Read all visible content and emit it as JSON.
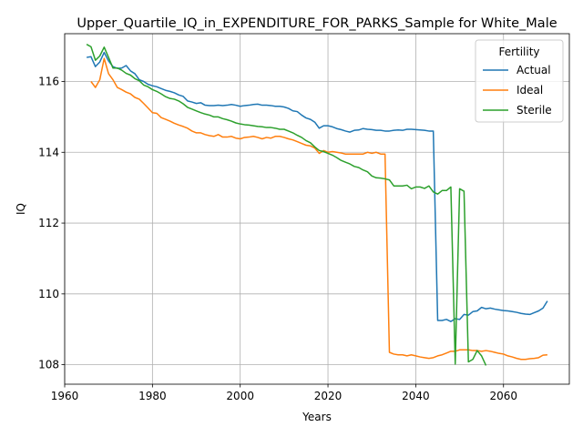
{
  "chart_data": {
    "type": "line",
    "title": "Upper_Quartile_IQ_in_EXPENDITURE_FOR_PARKS_Sample for White_Male",
    "xlabel": "Years",
    "ylabel": "IQ",
    "xlim": [
      1960,
      2075
    ],
    "ylim": [
      107.45,
      117.35
    ],
    "xticks": [
      1960,
      1980,
      2000,
      2020,
      2040,
      2060
    ],
    "yticks": [
      108,
      110,
      112,
      114,
      116
    ],
    "grid": true,
    "legend": {
      "title": "Fertility",
      "placement": "top-right"
    },
    "series": [
      {
        "name": "Actual",
        "color": "#1f77b4",
        "x": [
          1965,
          1966,
          1967,
          1968,
          1969,
          1970,
          1971,
          1972,
          1973,
          1974,
          1975,
          1976,
          1977,
          1978,
          1979,
          1980,
          1981,
          1982,
          1983,
          1984,
          1985,
          1986,
          1987,
          1988,
          1989,
          1990,
          1991,
          1992,
          1993,
          1994,
          1995,
          1996,
          1997,
          1998,
          1999,
          2000,
          2001,
          2002,
          2003,
          2004,
          2005,
          2006,
          2007,
          2008,
          2009,
          2010,
          2011,
          2012,
          2013,
          2014,
          2015,
          2016,
          2017,
          2018,
          2019,
          2020,
          2021,
          2022,
          2023,
          2024,
          2025,
          2026,
          2027,
          2028,
          2029,
          2030,
          2031,
          2032,
          2033,
          2034,
          2035,
          2036,
          2037,
          2038,
          2039,
          2040,
          2041,
          2042,
          2043,
          2044,
          2045,
          2046,
          2047,
          2048,
          2049,
          2050,
          2051,
          2052,
          2053,
          2054,
          2055,
          2056,
          2057,
          2058,
          2059,
          2060,
          2061,
          2062,
          2063,
          2064,
          2065,
          2066,
          2067,
          2068,
          2069,
          2070
        ],
        "values": [
          116.68,
          116.7,
          116.42,
          116.55,
          116.82,
          116.58,
          116.42,
          116.37,
          116.38,
          116.45,
          116.3,
          116.22,
          116.05,
          116.0,
          115.92,
          115.88,
          115.85,
          115.8,
          115.75,
          115.72,
          115.68,
          115.62,
          115.58,
          115.45,
          115.42,
          115.38,
          115.4,
          115.33,
          115.32,
          115.32,
          115.33,
          115.32,
          115.33,
          115.35,
          115.33,
          115.3,
          115.32,
          115.33,
          115.35,
          115.36,
          115.33,
          115.33,
          115.32,
          115.3,
          115.3,
          115.28,
          115.24,
          115.17,
          115.15,
          115.05,
          114.97,
          114.93,
          114.85,
          114.68,
          114.75,
          114.75,
          114.72,
          114.67,
          114.64,
          114.6,
          114.57,
          114.62,
          114.63,
          114.67,
          114.65,
          114.64,
          114.62,
          114.62,
          114.6,
          114.6,
          114.62,
          114.63,
          114.62,
          114.65,
          114.65,
          114.64,
          114.63,
          114.62,
          114.6,
          114.6,
          109.25,
          109.25,
          109.28,
          109.22,
          109.3,
          109.28,
          109.42,
          109.4,
          109.5,
          109.52,
          109.62,
          109.58,
          109.6,
          109.57,
          109.55,
          109.53,
          109.52,
          109.5,
          109.48,
          109.45,
          109.43,
          109.42,
          109.47,
          109.52,
          109.6,
          109.8
        ]
      },
      {
        "name": "Ideal",
        "color": "#ff7f0e",
        "x": [
          1966,
          1967,
          1968,
          1969,
          1970,
          1971,
          1972,
          1973,
          1974,
          1975,
          1976,
          1977,
          1978,
          1979,
          1980,
          1981,
          1982,
          1983,
          1984,
          1985,
          1986,
          1987,
          1988,
          1989,
          1990,
          1991,
          1992,
          1993,
          1994,
          1995,
          1996,
          1997,
          1998,
          1999,
          2000,
          2001,
          2002,
          2003,
          2004,
          2005,
          2006,
          2007,
          2008,
          2009,
          2010,
          2011,
          2012,
          2013,
          2014,
          2015,
          2016,
          2017,
          2018,
          2019,
          2020,
          2021,
          2022,
          2023,
          2024,
          2025,
          2026,
          2027,
          2028,
          2029,
          2030,
          2031,
          2032,
          2033,
          2034,
          2035,
          2036,
          2037,
          2038,
          2039,
          2040,
          2041,
          2042,
          2043,
          2044,
          2045,
          2046,
          2047,
          2048,
          2049,
          2050,
          2051,
          2052,
          2053,
          2054,
          2055,
          2056,
          2057,
          2058,
          2059,
          2060,
          2061,
          2062,
          2063,
          2064,
          2065,
          2066,
          2067,
          2068,
          2069,
          2070
        ],
        "values": [
          116.0,
          115.83,
          116.05,
          116.65,
          116.22,
          116.05,
          115.83,
          115.77,
          115.7,
          115.65,
          115.55,
          115.5,
          115.38,
          115.25,
          115.12,
          115.1,
          114.98,
          114.93,
          114.88,
          114.82,
          114.77,
          114.73,
          114.68,
          114.6,
          114.55,
          114.55,
          114.5,
          114.47,
          114.45,
          114.5,
          114.43,
          114.43,
          114.45,
          114.4,
          114.38,
          114.42,
          114.43,
          114.45,
          114.42,
          114.38,
          114.42,
          114.4,
          114.45,
          114.45,
          114.42,
          114.38,
          114.35,
          114.3,
          114.25,
          114.2,
          114.18,
          114.12,
          113.97,
          114.05,
          114.0,
          114.02,
          114.0,
          113.98,
          113.95,
          113.95,
          113.95,
          113.95,
          113.95,
          114.0,
          113.97,
          114.0,
          113.95,
          113.95,
          108.35,
          108.3,
          108.28,
          108.28,
          108.25,
          108.28,
          108.25,
          108.22,
          108.2,
          108.18,
          108.2,
          108.25,
          108.28,
          108.33,
          108.38,
          108.38,
          108.42,
          108.42,
          108.42,
          108.4,
          108.4,
          108.38,
          108.4,
          108.38,
          108.35,
          108.32,
          108.3,
          108.25,
          108.22,
          108.18,
          108.15,
          108.15,
          108.17,
          108.18,
          108.2,
          108.27,
          108.28
        ]
      },
      {
        "name": "Sterile",
        "color": "#2ca02c",
        "x": [
          1965,
          1966,
          1967,
          1968,
          1969,
          1970,
          1971,
          1972,
          1973,
          1974,
          1975,
          1976,
          1977,
          1978,
          1979,
          1980,
          1981,
          1982,
          1983,
          1984,
          1985,
          1986,
          1987,
          1988,
          1989,
          1990,
          1991,
          1992,
          1993,
          1994,
          1995,
          1996,
          1997,
          1998,
          1999,
          2000,
          2001,
          2002,
          2003,
          2004,
          2005,
          2006,
          2007,
          2008,
          2009,
          2010,
          2011,
          2012,
          2013,
          2014,
          2015,
          2016,
          2017,
          2018,
          2019,
          2020,
          2021,
          2022,
          2023,
          2024,
          2025,
          2026,
          2027,
          2028,
          2029,
          2030,
          2031,
          2032,
          2033,
          2034,
          2035,
          2036,
          2037,
          2038,
          2039,
          2040,
          2041,
          2042,
          2043,
          2044,
          2045,
          2046,
          2047,
          2048,
          2049,
          2050,
          2051,
          2052,
          2053,
          2054,
          2055,
          2056
        ],
        "values": [
          117.05,
          116.98,
          116.6,
          116.72,
          116.97,
          116.68,
          116.38,
          116.38,
          116.32,
          116.23,
          116.18,
          116.08,
          116.02,
          115.9,
          115.85,
          115.77,
          115.72,
          115.65,
          115.57,
          115.52,
          115.5,
          115.45,
          115.37,
          115.27,
          115.22,
          115.17,
          115.12,
          115.08,
          115.05,
          115.0,
          115.0,
          114.95,
          114.92,
          114.88,
          114.83,
          114.8,
          114.78,
          114.77,
          114.75,
          114.73,
          114.72,
          114.7,
          114.7,
          114.68,
          114.65,
          114.65,
          114.6,
          114.55,
          114.48,
          114.42,
          114.33,
          114.27,
          114.15,
          114.05,
          114.02,
          113.97,
          113.92,
          113.85,
          113.77,
          113.72,
          113.67,
          113.6,
          113.57,
          113.5,
          113.45,
          113.33,
          113.28,
          113.27,
          113.25,
          113.22,
          113.05,
          113.05,
          113.05,
          113.07,
          112.97,
          113.02,
          113.02,
          112.98,
          113.05,
          112.88,
          112.82,
          112.92,
          112.92,
          113.02,
          108.02,
          112.97,
          112.9,
          108.08,
          108.15,
          108.4,
          108.25,
          107.98
        ]
      }
    ]
  }
}
